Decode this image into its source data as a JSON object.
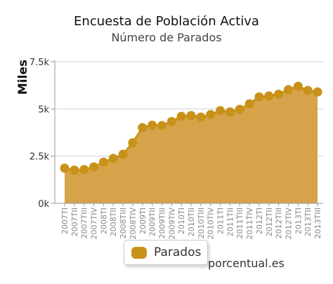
{
  "chart_data": {
    "type": "area",
    "title": "Encuesta de Población Activa",
    "subtitle": "Número de Parados",
    "ylabel": "Miles",
    "xlabel": "",
    "ylim": [
      0,
      7500
    ],
    "y_ticks": [
      0,
      2500,
      5000,
      7500
    ],
    "y_tick_labels": [
      "0k",
      "2.5k",
      "5k",
      "7.5k"
    ],
    "categories": [
      "2007TI",
      "2007TII",
      "2007TIII",
      "2007TIV",
      "2008TI",
      "2008TII",
      "2008TIII",
      "2008TIV",
      "2009TI",
      "2009TII",
      "2009TIII",
      "2009TIV",
      "2010TI",
      "2010TII",
      "2010TIII",
      "2010TIV",
      "2011TI",
      "2011TII",
      "2011TIII",
      "2011TIV",
      "2012TI",
      "2012TII",
      "2012TIII",
      "2012TIV",
      "2013TI",
      "2013TII",
      "2013TIII"
    ],
    "x_tick_labels": [
      "2007TI",
      "2007TII",
      "2007TIII",
      "2007TIV",
      "2008TI",
      "2008TII",
      "2008TIII",
      "2008TIV",
      "2009TI",
      "2009TII",
      "2009TIII",
      "2009TIV",
      "2010TI",
      "2010TII",
      "2010TIII",
      "2010TIV",
      "2011TI",
      "2011TII",
      "2011TIII",
      "2011TIV",
      "2012TI",
      "2012TII",
      "2012TIII",
      "2012TIV",
      "2013TI",
      "2013TII",
      "2013TIII"
    ],
    "series": [
      {
        "name": "Parados",
        "color": "#c89218",
        "fill": "#d6a24a",
        "values": [
          1860,
          1760,
          1790,
          1930,
          2180,
          2380,
          2600,
          3210,
          4010,
          4140,
          4120,
          4330,
          4610,
          4650,
          4570,
          4700,
          4910,
          4840,
          4980,
          5270,
          5640,
          5690,
          5780,
          6020,
          6200,
          5980,
          5900
        ]
      }
    ],
    "grid": true,
    "legend_position": "bottom-center"
  },
  "legend": {
    "label": "Parados"
  },
  "credit": "porcentual.es"
}
